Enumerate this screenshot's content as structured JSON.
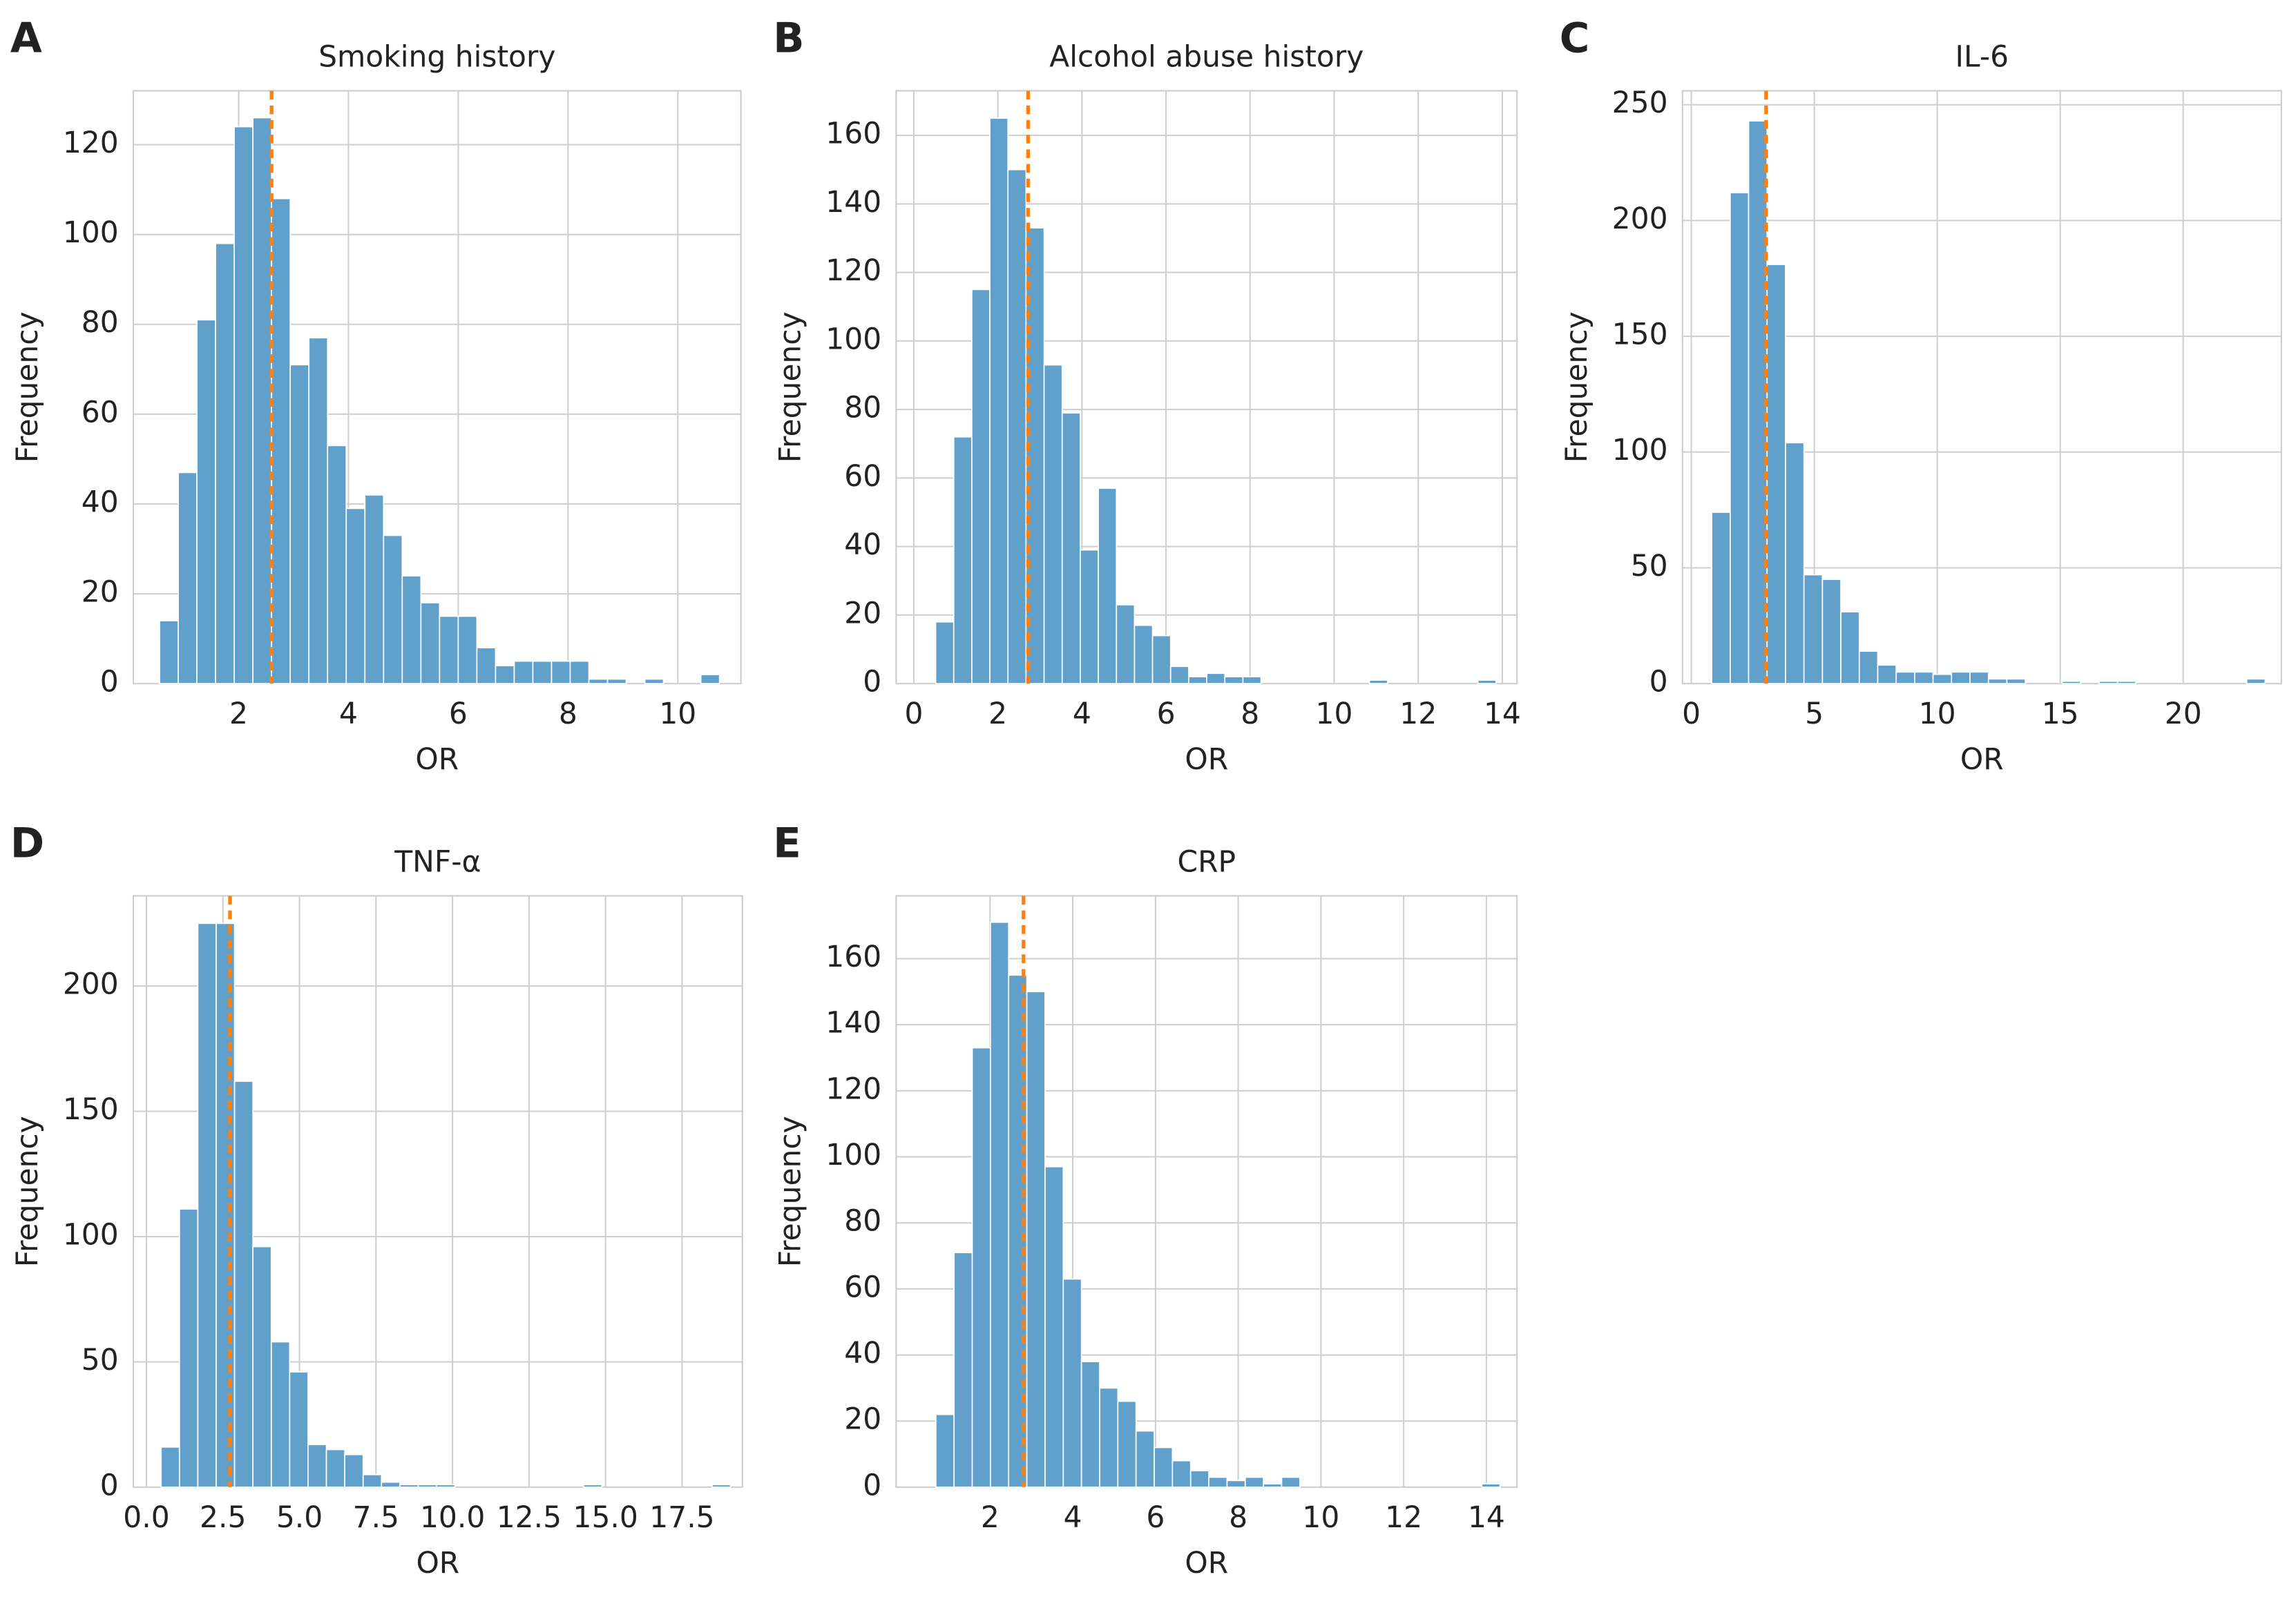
{
  "chart_data": [
    {
      "type": "histogram",
      "panel": "A",
      "title": "Smoking history",
      "xlabel": "OR",
      "ylabel": "Frequency",
      "color": "#62a0cc",
      "grid": true,
      "bins": [
        0.56,
        0.9,
        1.24,
        1.58,
        1.92,
        2.26,
        2.6,
        2.94,
        3.28,
        3.62,
        3.96,
        4.3,
        4.64,
        4.98,
        5.32,
        5.66,
        6.0,
        6.34,
        6.68,
        7.02,
        7.36,
        7.7,
        8.04,
        8.38,
        8.72,
        9.06,
        9.4,
        9.74,
        10.08,
        10.42,
        10.76
      ],
      "counts": [
        14,
        47,
        81,
        98,
        124,
        126,
        108,
        71,
        77,
        53,
        39,
        42,
        33,
        24,
        18,
        15,
        15,
        8,
        4,
        5,
        5,
        5,
        5,
        1,
        1,
        0,
        1,
        0,
        0,
        2
      ],
      "reference_line": {
        "value": 2.6,
        "color": "#ff7f0e"
      },
      "xlim": [
        0.08,
        11.15
      ],
      "ylim": [
        0,
        132
      ],
      "xticks": [
        2,
        4,
        6,
        8,
        10
      ],
      "yticks": [
        0,
        20,
        40,
        60,
        80,
        100,
        120
      ]
    },
    {
      "type": "histogram",
      "panel": "B",
      "title": "Alcohol abuse history",
      "xlabel": "OR",
      "ylabel": "Frequency",
      "color": "#62a0cc",
      "grid": true,
      "bins": [
        0.52,
        0.95,
        1.38,
        1.81,
        2.24,
        2.67,
        3.1,
        3.53,
        3.96,
        4.39,
        4.82,
        5.25,
        5.68,
        6.11,
        6.54,
        6.97,
        7.4,
        7.83,
        8.26,
        8.69,
        9.12,
        9.55,
        9.98,
        10.41,
        10.84,
        11.27,
        11.7,
        12.13,
        12.56,
        12.99,
        13.42,
        13.85
      ],
      "counts": [
        18,
        72,
        115,
        165,
        150,
        133,
        93,
        79,
        39,
        57,
        23,
        17,
        14,
        5,
        2,
        3,
        2,
        2,
        0,
        0,
        0,
        0,
        0,
        0,
        1,
        0,
        0,
        0,
        0,
        0,
        1
      ],
      "reference_line": {
        "value": 2.72,
        "color": "#ff7f0e"
      },
      "xlim": [
        -0.42,
        14.35
      ],
      "ylim": [
        0,
        173
      ],
      "xticks": [
        0,
        2,
        4,
        6,
        8,
        10,
        12,
        14
      ],
      "yticks": [
        0,
        20,
        40,
        60,
        80,
        100,
        120,
        140,
        160
      ]
    },
    {
      "type": "histogram",
      "panel": "C",
      "title": "IL-6",
      "xlabel": "OR",
      "ylabel": "Frequency",
      "color": "#62a0cc",
      "grid": true,
      "bins": [
        0.83,
        1.58,
        2.33,
        3.08,
        3.83,
        4.58,
        5.33,
        6.08,
        6.83,
        7.58,
        8.33,
        9.08,
        9.83,
        10.58,
        11.33,
        12.08,
        12.83,
        13.58,
        14.33,
        15.08,
        15.83,
        16.58,
        17.33,
        18.08,
        18.83,
        19.58,
        20.33,
        21.08,
        21.83,
        22.58,
        23.33
      ],
      "counts": [
        74,
        212,
        243,
        181,
        104,
        47,
        45,
        31,
        14,
        8,
        5,
        5,
        4,
        5,
        5,
        2,
        2,
        0,
        0,
        1,
        0,
        1,
        1,
        0,
        0,
        0,
        0,
        0,
        0,
        2
      ],
      "reference_line": {
        "value": 3.04,
        "color": "#ff7f0e"
      },
      "xlim": [
        -0.36,
        23.99
      ],
      "ylim": [
        0,
        256
      ],
      "xticks": [
        0,
        5,
        10,
        15,
        20
      ],
      "yticks": [
        0,
        50,
        100,
        150,
        200,
        250
      ]
    },
    {
      "type": "histogram",
      "panel": "D",
      "title": "TNF-α",
      "xlabel": "OR",
      "ylabel": "Frequency",
      "color": "#62a0cc",
      "grid": true,
      "bins": [
        0.48,
        1.08,
        1.68,
        2.28,
        2.88,
        3.48,
        4.08,
        4.68,
        5.28,
        5.88,
        6.48,
        7.08,
        7.68,
        8.28,
        8.88,
        9.48,
        10.08,
        10.68,
        11.28,
        11.88,
        12.48,
        13.08,
        13.68,
        14.28,
        14.88,
        15.48,
        16.08,
        16.68,
        17.28,
        17.88,
        18.48,
        19.08
      ],
      "counts": [
        16,
        111,
        225,
        225,
        162,
        96,
        58,
        46,
        17,
        15,
        13,
        5,
        2,
        1,
        1,
        1,
        0,
        0,
        0,
        0,
        0,
        0,
        0,
        1,
        0,
        0,
        0,
        0,
        0,
        0,
        1
      ],
      "reference_line": {
        "value": 2.73,
        "color": "#ff7f0e"
      },
      "xlim": [
        -0.43,
        19.47
      ],
      "ylim": [
        0,
        236
      ],
      "xticks": [
        {
          "value": 0,
          "label": "0.0"
        },
        2.5,
        {
          "value": 5,
          "label": "5.0"
        },
        7.5,
        {
          "value": 10,
          "label": "10.0"
        },
        12.5,
        {
          "value": 15,
          "label": "15.0"
        },
        17.5
      ],
      "yticks": [
        0,
        50,
        100,
        150,
        200
      ]
    },
    {
      "type": "histogram",
      "panel": "E",
      "title": "CRP",
      "xlabel": "OR",
      "ylabel": "Frequency",
      "color": "#62a0cc",
      "grid": true,
      "bins": [
        0.69,
        1.13,
        1.57,
        2.01,
        2.45,
        2.89,
        3.33,
        3.77,
        4.21,
        4.65,
        5.09,
        5.53,
        5.97,
        6.41,
        6.85,
        7.29,
        7.73,
        8.17,
        8.61,
        9.05,
        9.49,
        9.93,
        10.37,
        10.81,
        11.25,
        11.69,
        12.13,
        12.57,
        13.01,
        13.45,
        13.89,
        14.33
      ],
      "counts": [
        22,
        71,
        133,
        171,
        155,
        150,
        97,
        63,
        38,
        30,
        26,
        17,
        12,
        8,
        5,
        3,
        2,
        3,
        1,
        3,
        0,
        0,
        0,
        0,
        0,
        0,
        0,
        0,
        0,
        0,
        1
      ],
      "reference_line": {
        "value": 2.81,
        "color": "#ff7f0e"
      },
      "xlim": [
        -0.27,
        14.74
      ],
      "ylim": [
        0,
        179
      ],
      "xticks": [
        2,
        4,
        6,
        8,
        10,
        12,
        14
      ],
      "yticks": [
        0,
        20,
        40,
        60,
        80,
        100,
        120,
        140,
        160
      ]
    }
  ]
}
